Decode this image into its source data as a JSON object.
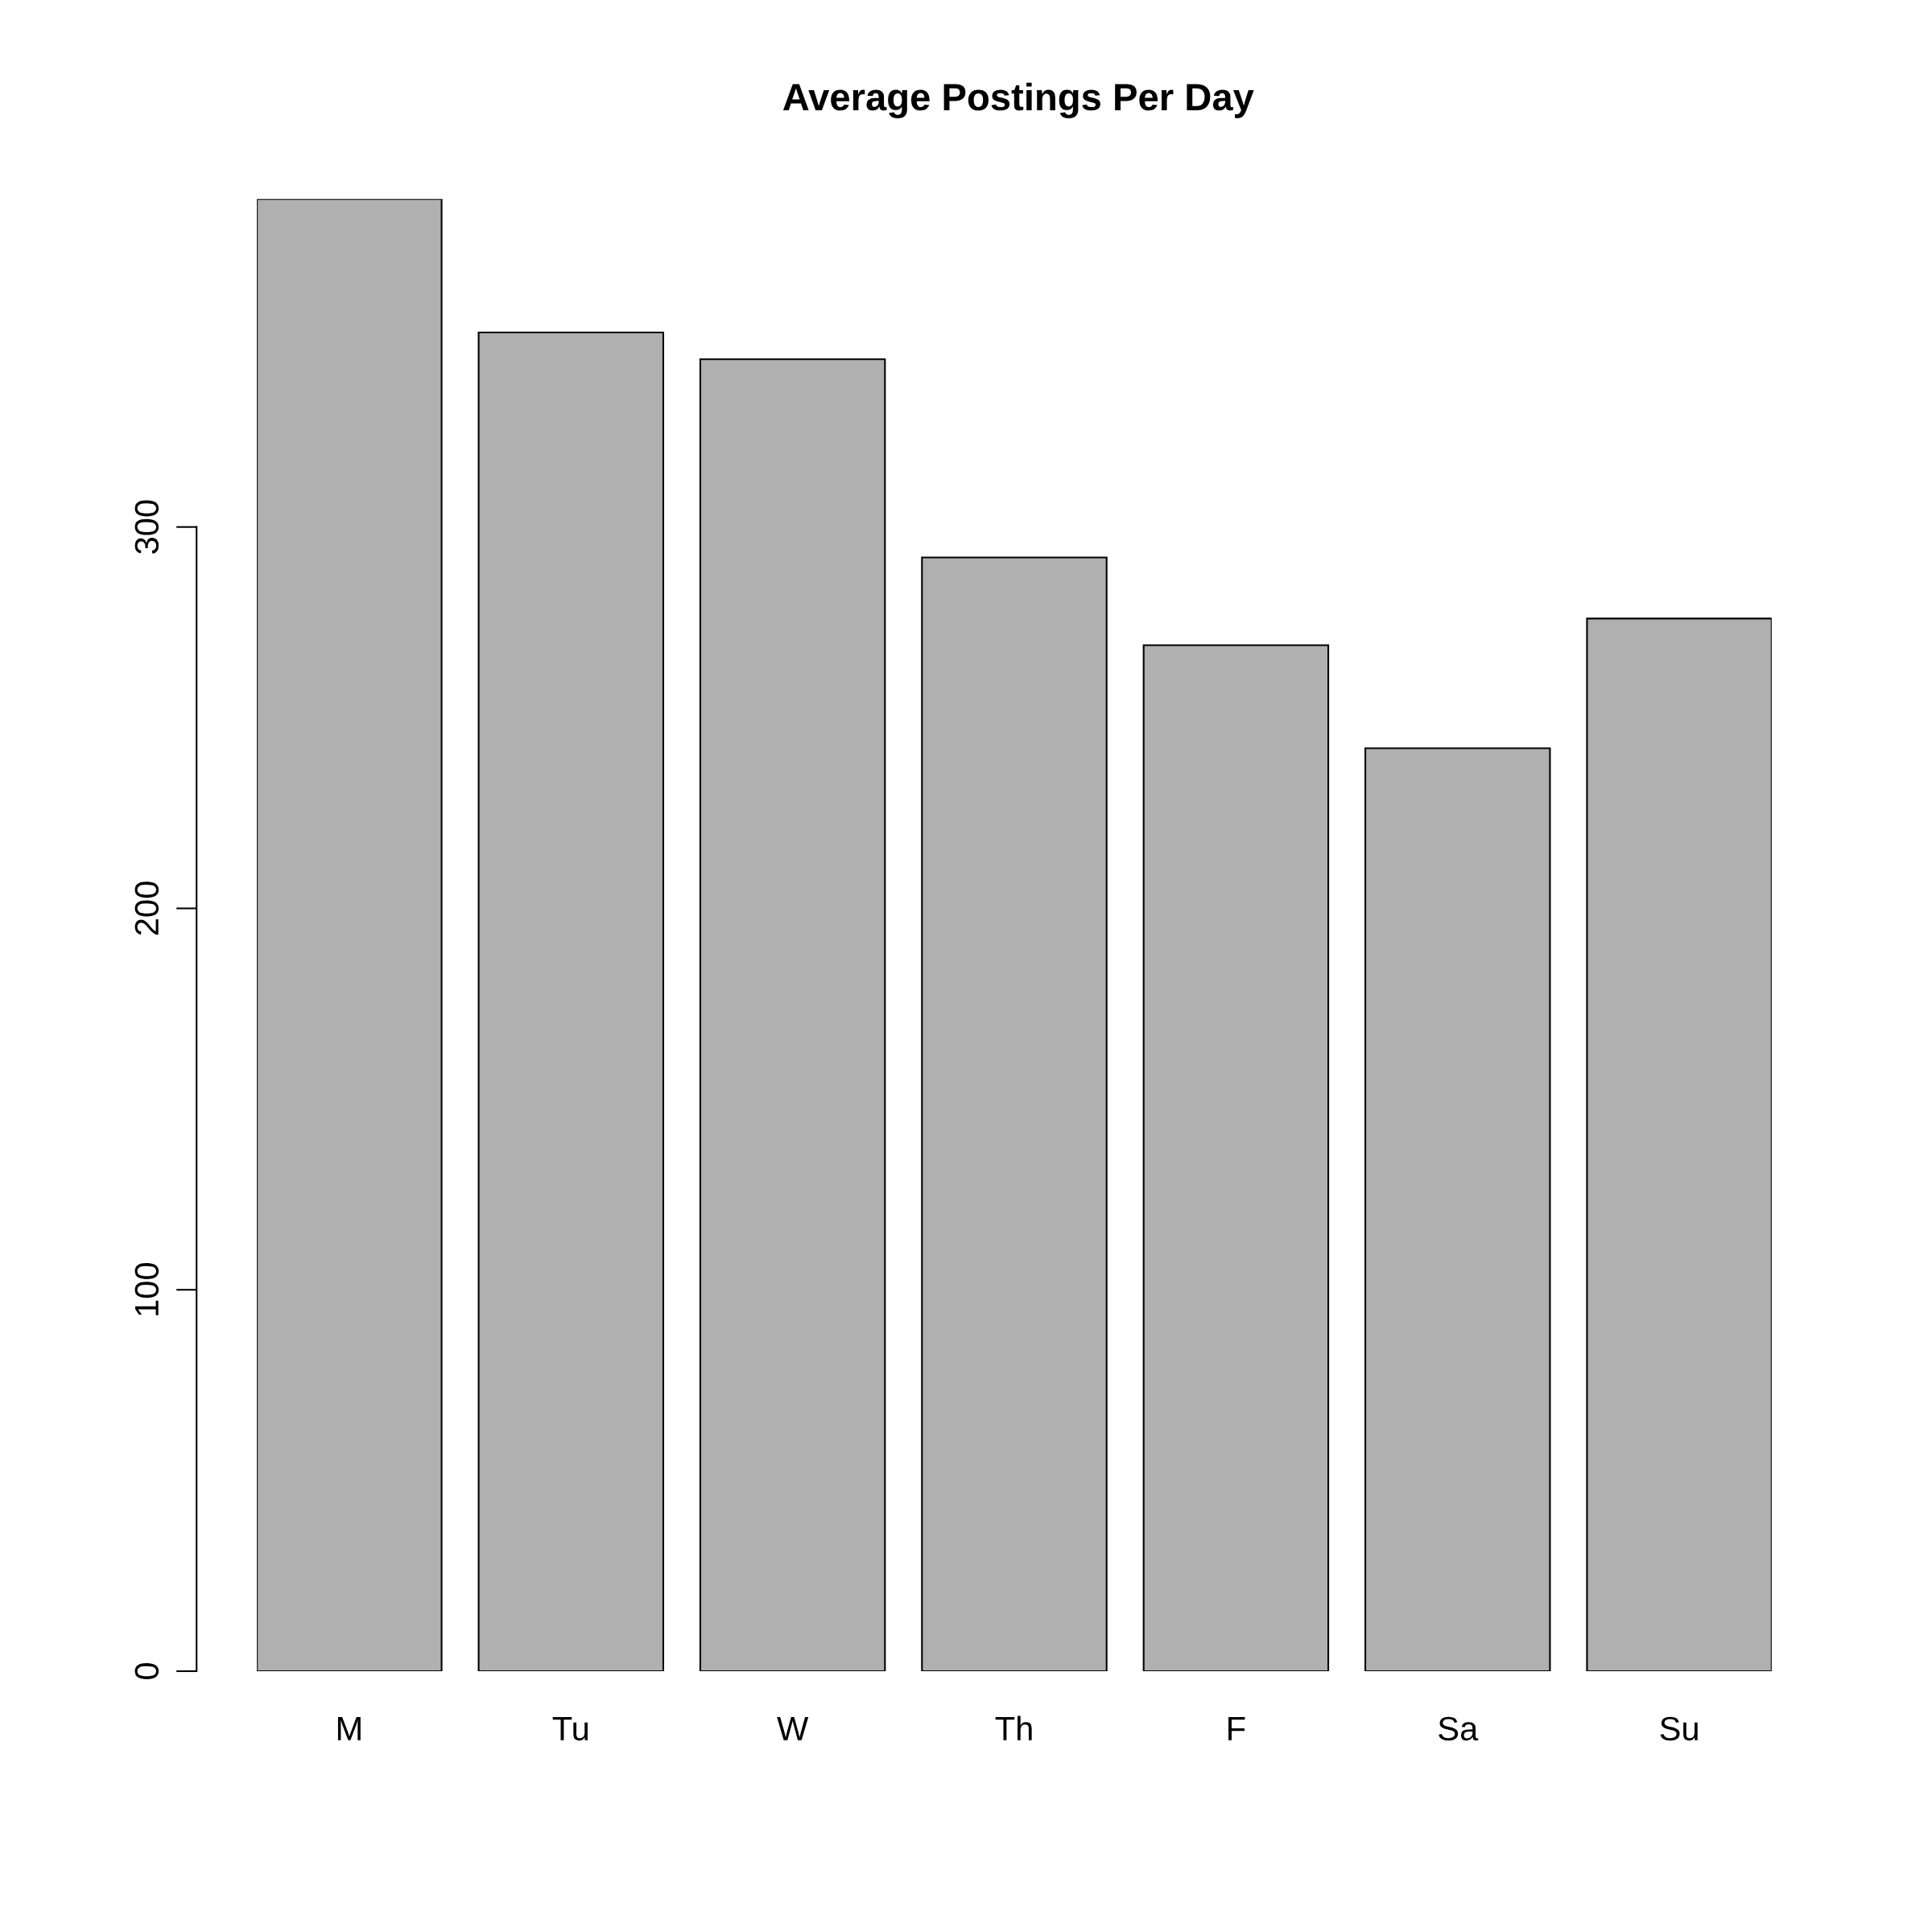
{
  "chart_data": {
    "type": "bar",
    "title": "Average Postings Per Day",
    "categories": [
      "M",
      "Tu",
      "W",
      "Th",
      "F",
      "Sa",
      "Su"
    ],
    "values": [
      386,
      351,
      344,
      292,
      269,
      242,
      276
    ],
    "color": "#b0b0b0",
    "ylim": [
      0,
      386
    ],
    "yticks": [
      0,
      100,
      200,
      300
    ],
    "grid": false
  }
}
